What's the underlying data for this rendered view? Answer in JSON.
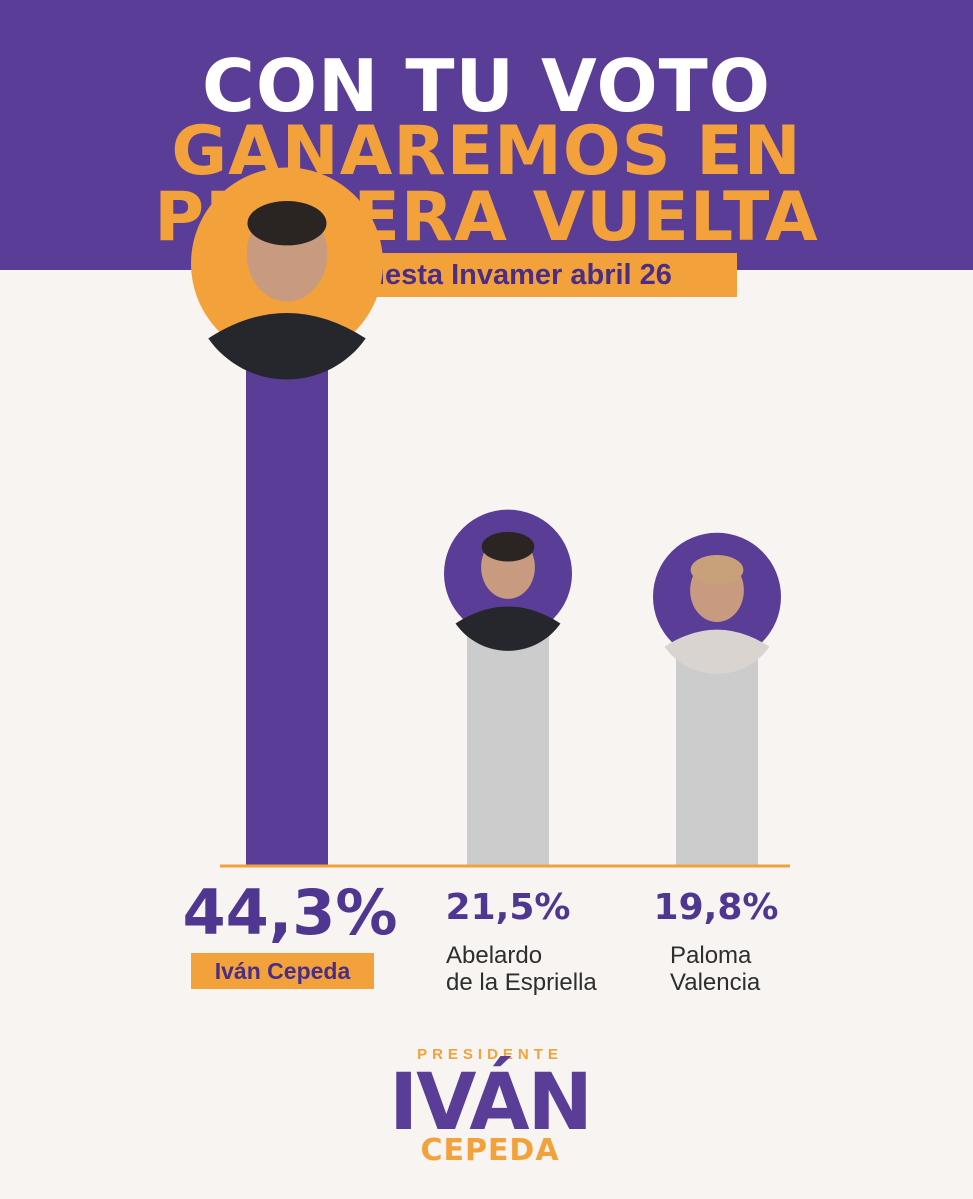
{
  "headline": {
    "line1": "CON TU VOTO",
    "line2": "GANAREMOS EN",
    "line3": "PRIMERA VUELTA"
  },
  "subtitle": "Encuesta Invamer abril 26",
  "chart_data": {
    "type": "bar",
    "categories": [
      "Iván Cepeda",
      "Abelardo de la Espriella",
      "Paloma Valencia"
    ],
    "values": [
      44.3,
      21.5,
      19.8
    ],
    "value_labels": [
      "44,3%",
      "21,5%",
      "19,8%"
    ],
    "name_lines": [
      [
        "Iván Cepeda"
      ],
      [
        "Abelardo",
        "de la Espriella"
      ],
      [
        "Paloma",
        "Valencia"
      ]
    ],
    "unit": "%",
    "bar_colors": [
      "#5a3d97",
      "#cccccc",
      "#cccccc"
    ],
    "avatar_ring_colors": [
      "#f3a13b",
      "#5a3d97",
      "#5a3d97"
    ],
    "axis_color": "#f3a13b",
    "grid": false
  },
  "logo": {
    "pre": "PRESIDENTE",
    "main": "IVÁN",
    "sub": "CEPEDA"
  },
  "colors": {
    "purple": "#5a3d97",
    "orange": "#f3a13b",
    "background": "#f7f4f1",
    "grey_bar": "#cccccc"
  }
}
